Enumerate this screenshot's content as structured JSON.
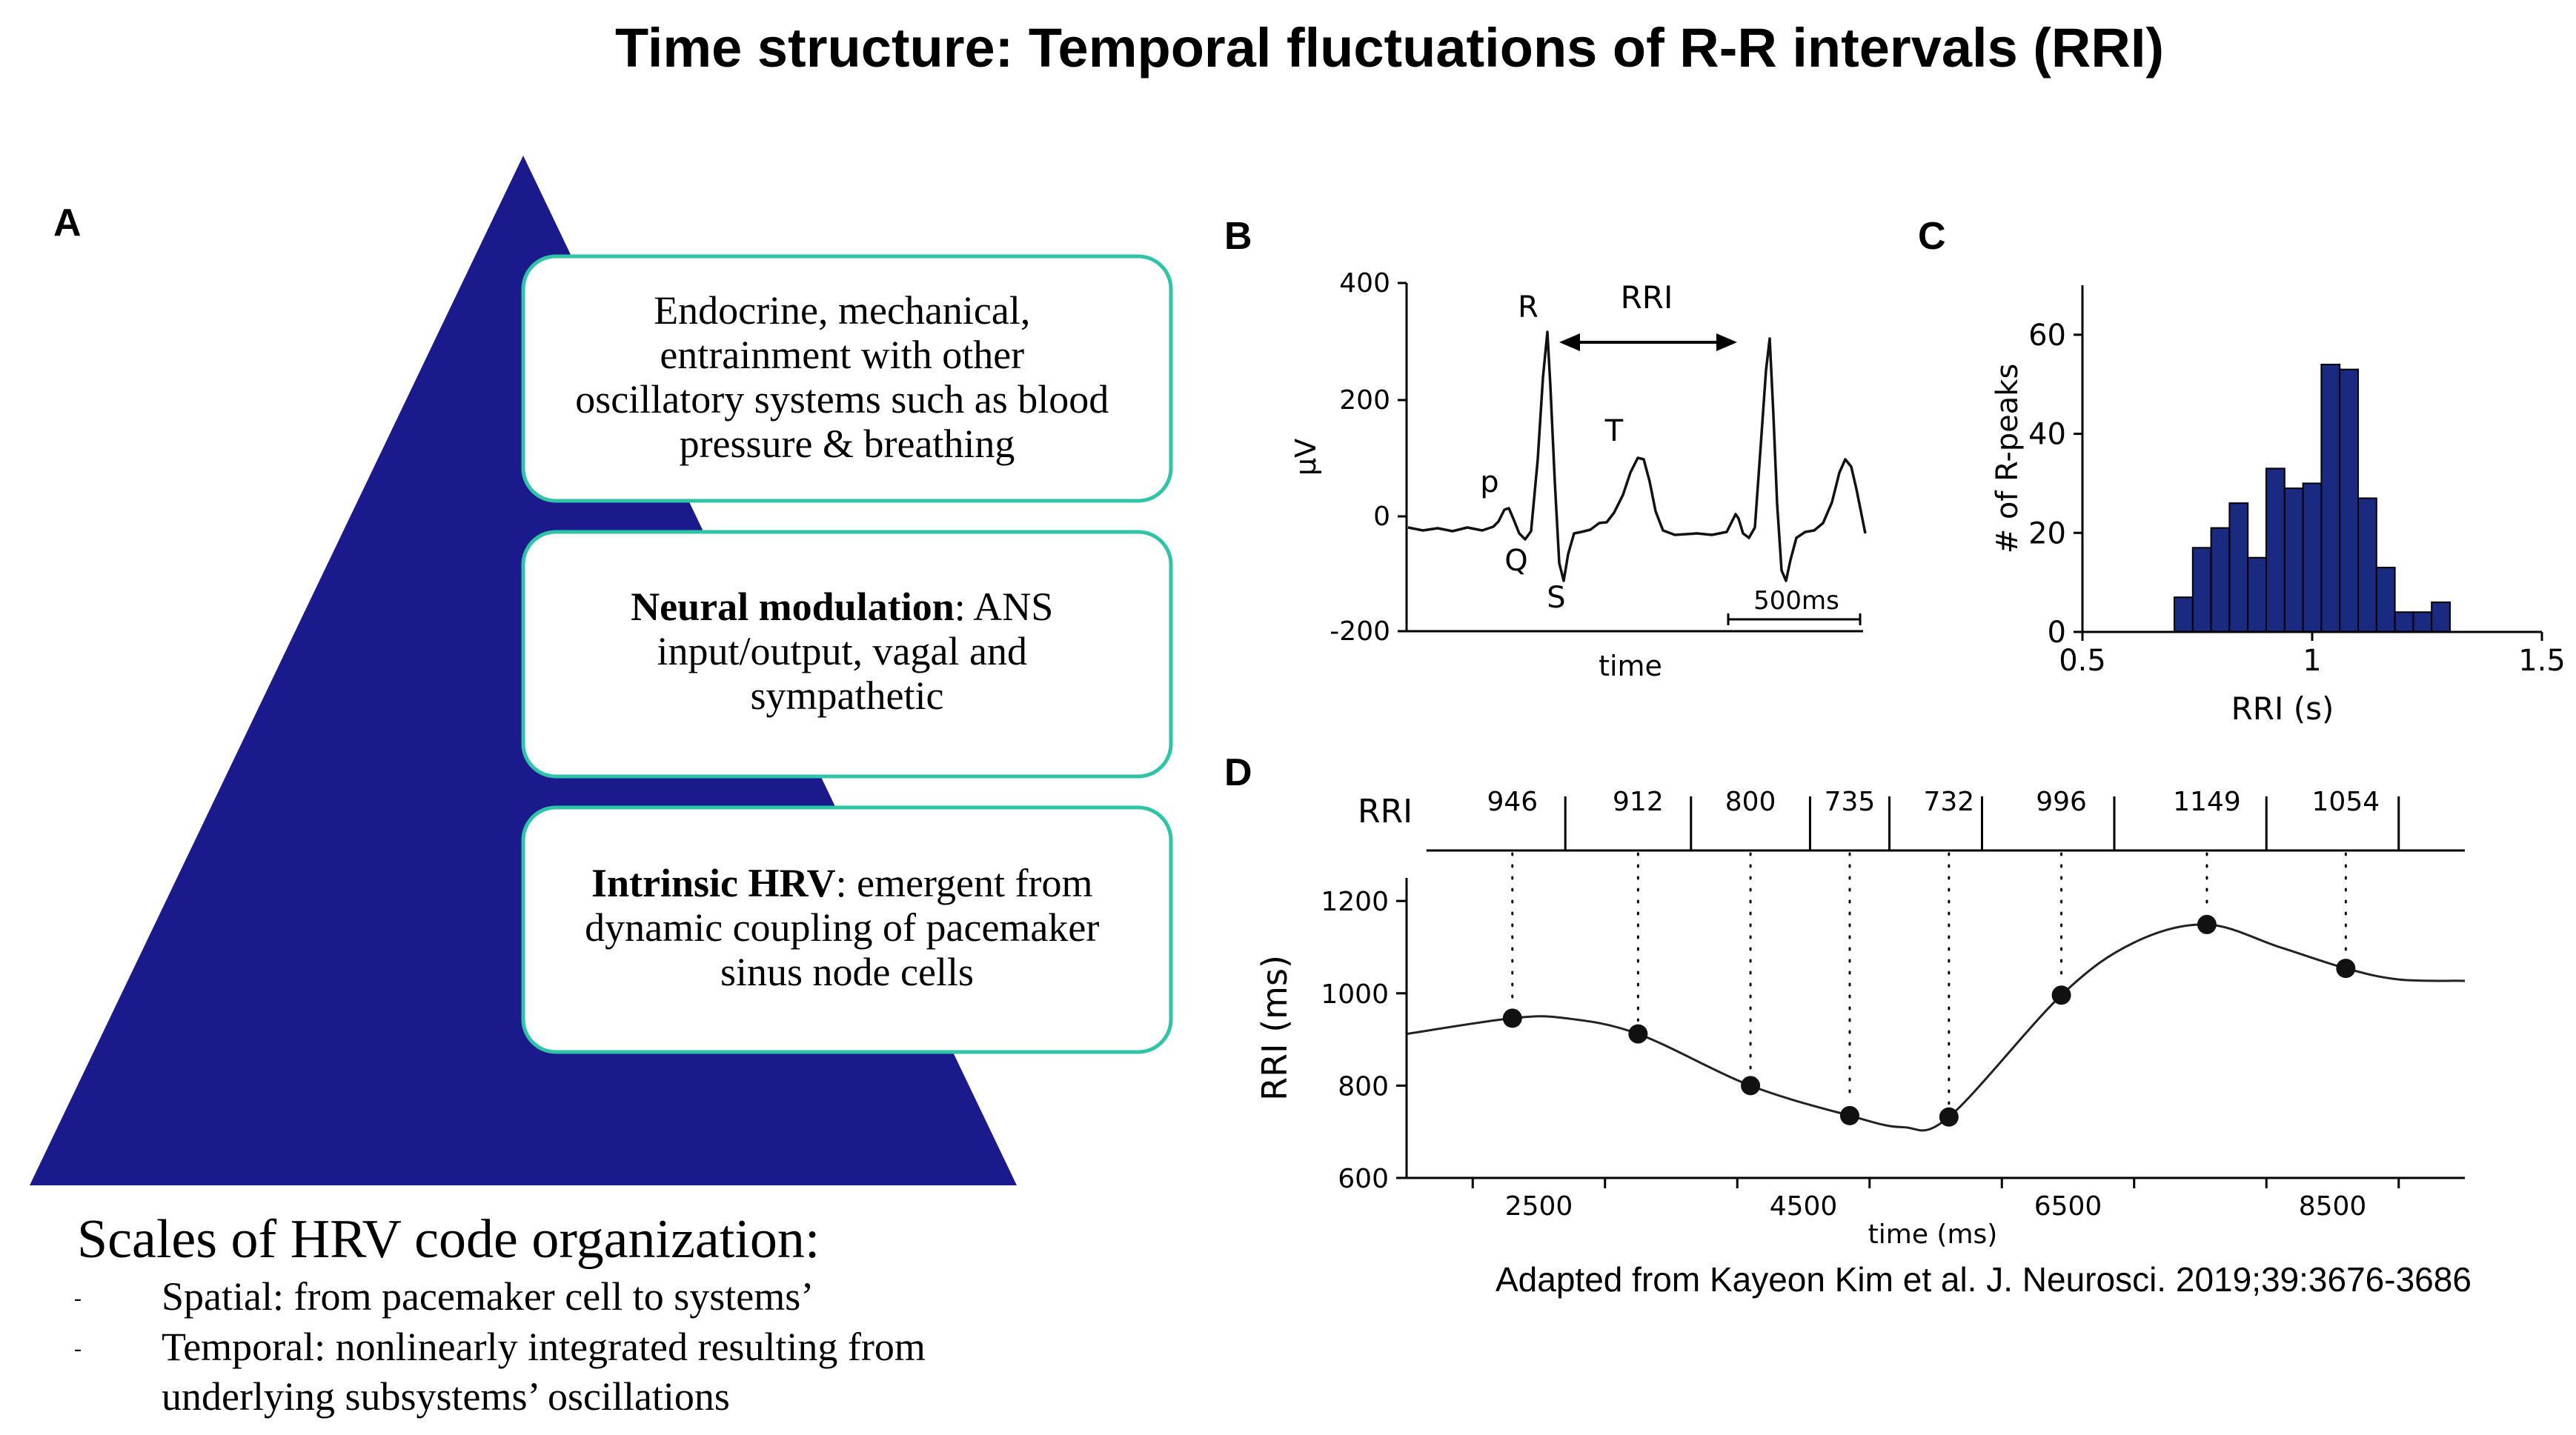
{
  "title": "Time structure: Temporal fluctuations of R-R intervals (RRI)",
  "panel_labels": {
    "a": "A",
    "b": "B",
    "c": "C",
    "d": "D"
  },
  "colors": {
    "pyramid": "#1a1a8c",
    "box_border": "#2ec4a6",
    "bar": "#1a2a80",
    "text": "#000000"
  },
  "pyramid_boxes": [
    {
      "lines": [
        "Endocrine, mechanical,",
        "entrainment with other",
        "oscillatory systems such as blood",
        "pressure & breathing"
      ]
    },
    {
      "bold": "Neural modulation",
      "lines": [
        ": ANS",
        "input/output, vagal and",
        "sympathetic"
      ]
    },
    {
      "bold": "Intrinsic HRV",
      "lines": [
        ": emergent from",
        "dynamic coupling of pacemaker",
        "sinus node cells"
      ]
    }
  ],
  "scales": {
    "heading": "Scales of HRV code organization:",
    "bullet_1": "Spatial: from pacemaker cell to systems’",
    "bullet_2a": "Temporal: nonlinearly integrated resulting from",
    "bullet_2b": "underlying subsystems’ oscillations",
    "bullet_marker": "-"
  },
  "ecg": {
    "ylabel": "μV",
    "xlabel": "time",
    "yticks": [
      "400",
      "200",
      "0",
      "-200"
    ],
    "waves": {
      "p": "p",
      "q": "Q",
      "r": "R",
      "s": "S",
      "t": "T"
    },
    "rri_label": "RRI",
    "scalebar": "500ms"
  },
  "chart_data": [
    {
      "type": "bar",
      "title": "",
      "xlabel": "RRI (s)",
      "ylabel": "# of R-peaks",
      "xlim": [
        0.5,
        1.5
      ],
      "ylim": [
        0,
        70
      ],
      "xticks": [
        "0.5",
        "1",
        "1.5"
      ],
      "yticks": [
        "0",
        "20",
        "40",
        "60"
      ],
      "bin_start": 0.7,
      "bin_width": 0.04,
      "values": [
        7,
        17,
        21,
        26,
        15,
        33,
        29,
        30,
        54,
        53,
        27,
        13,
        4,
        4,
        6
      ]
    },
    {
      "type": "line",
      "title": "",
      "xlabel": "time (ms)",
      "ylabel": "RRI  (ms)",
      "xlim": [
        1500,
        9500
      ],
      "ylim": [
        600,
        1250
      ],
      "xticks": [
        "2500",
        "4500",
        "6500",
        "8500"
      ],
      "yticks": [
        "600",
        "800",
        "1000",
        "1200"
      ],
      "points": {
        "x": [
          2300,
          3250,
          4100,
          4850,
          5600,
          6450,
          7550,
          8600
        ],
        "y": [
          946,
          912,
          800,
          735,
          732,
          996,
          1149,
          1054
        ]
      },
      "curve": {
        "x": [
          1500,
          2300,
          2700,
          3250,
          4100,
          4850,
          5250,
          5600,
          6450,
          7000,
          7550,
          8100,
          8600,
          9000,
          9500
        ],
        "y": [
          912,
          946,
          946,
          912,
          800,
          735,
          710,
          732,
          996,
          1110,
          1149,
          1100,
          1054,
          1030,
          1027
        ]
      },
      "rri_row_label": "RRI",
      "rri_values": [
        "946",
        "912",
        "800",
        "735",
        "732",
        "996",
        "1149",
        "1054"
      ],
      "beat_times": [
        2700,
        3650,
        4550,
        5150,
        5850,
        6850,
        8000,
        9000
      ],
      "beat_row_start": 1650,
      "beat_row_end": 9500
    }
  ],
  "credit": "Adapted from Kayeon Kim et al. J. Neurosci. 2019;39:3676-3686"
}
